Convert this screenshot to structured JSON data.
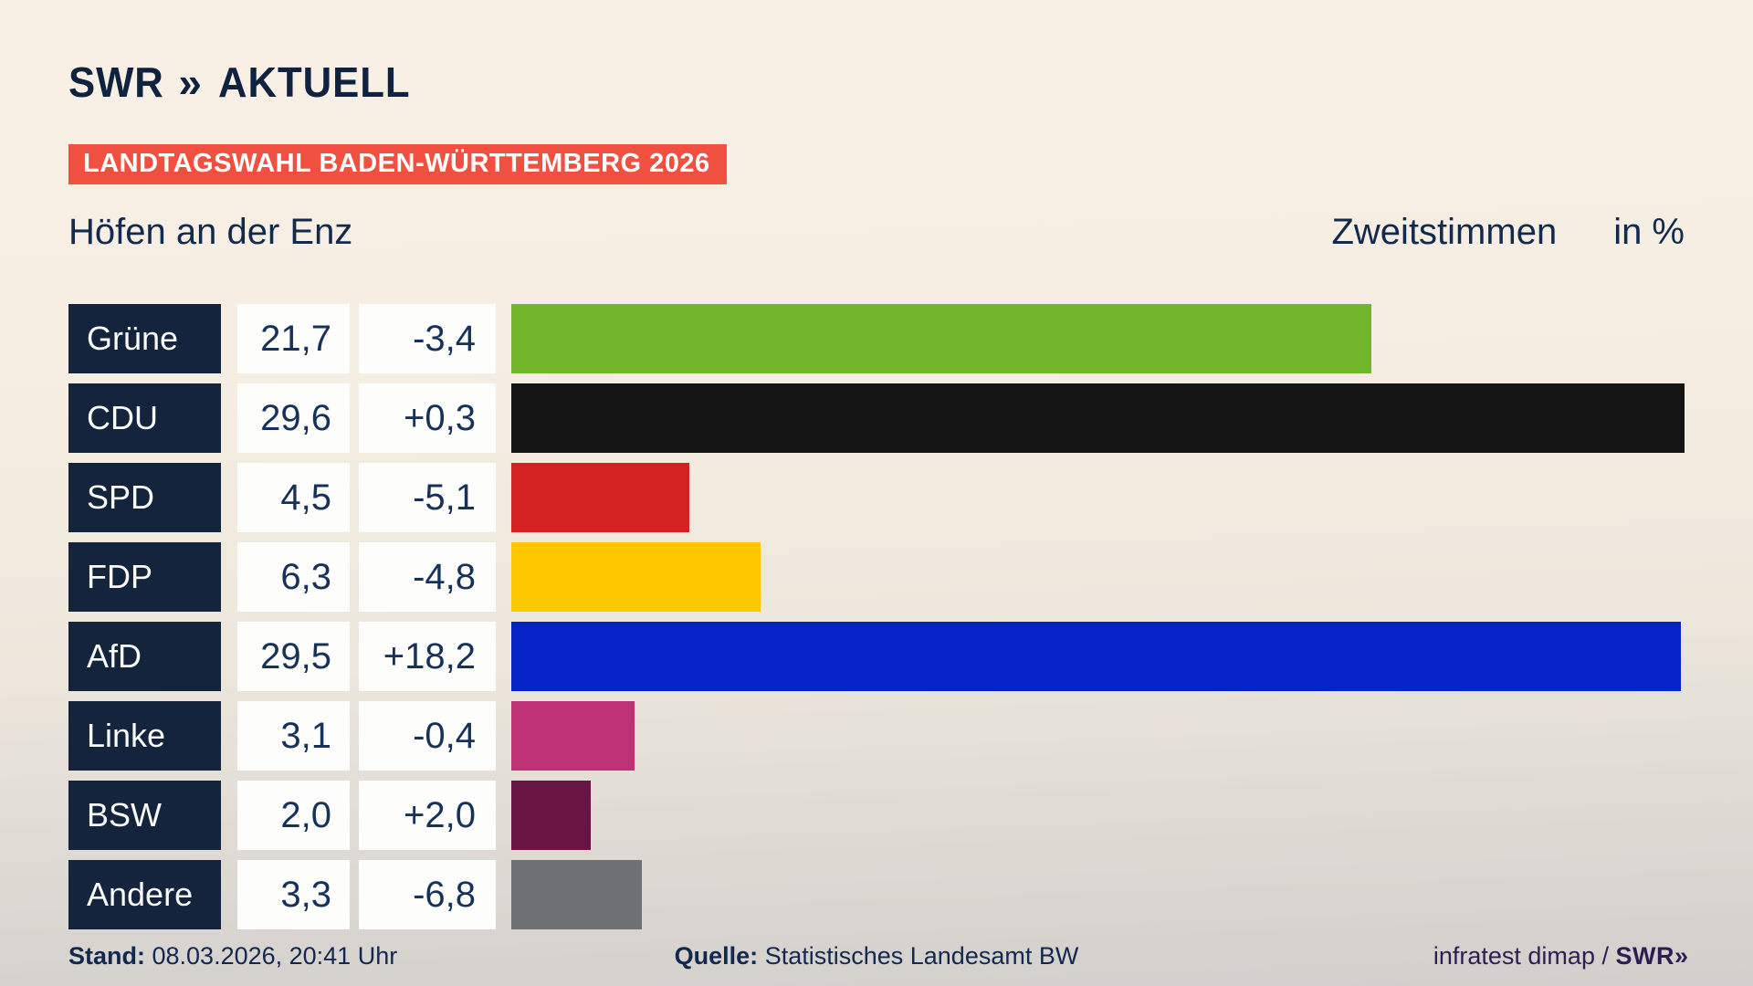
{
  "header": {
    "brand_swr": "SWR",
    "brand_chevrons": "»",
    "brand_aktuell": "AKTUELL",
    "banner": "LANDTAGSWAHL BADEN-WÜRTTEMBERG 2026",
    "region": "Höfen an der Enz",
    "subtitle": "Zweitstimmen",
    "unit": "in %"
  },
  "colors": {
    "banner_red": "#f0503f",
    "navy_box": "#14243d",
    "text_navy": "#16325a",
    "background_top": "#f8f0e5",
    "background_bottom": "#d2cfcc"
  },
  "chart_data": {
    "type": "bar",
    "orientation": "horizontal",
    "title": "Zweitstimmen in %",
    "region": "Höfen an der Enz",
    "unit": "%",
    "xlim": [
      0,
      29.6
    ],
    "max_value": 29.6,
    "grid": false,
    "legend": false,
    "parties": [
      {
        "name": "Grüne",
        "value": "21,7",
        "change": "-3,4",
        "value_num": 21.7,
        "change_num": -3.4,
        "color": "#74b62a"
      },
      {
        "name": "CDU",
        "value": "29,6",
        "change": "+0,3",
        "value_num": 29.6,
        "change_num": 0.3,
        "color": "#141414"
      },
      {
        "name": "SPD",
        "value": "4,5",
        "change": "-5,1",
        "value_num": 4.5,
        "change_num": -5.1,
        "color": "#d32222"
      },
      {
        "name": "FDP",
        "value": "6,3",
        "change": "-4,8",
        "value_num": 6.3,
        "change_num": -4.8,
        "color": "#fdc800"
      },
      {
        "name": "AfD",
        "value": "29,5",
        "change": "+18,2",
        "value_num": 29.5,
        "change_num": 18.2,
        "color": "#0623c8"
      },
      {
        "name": "Linke",
        "value": "3,1",
        "change": "-0,4",
        "value_num": 3.1,
        "change_num": -0.4,
        "color": "#be3175"
      },
      {
        "name": "BSW",
        "value": "2,0",
        "change": "+2,0",
        "value_num": 2.0,
        "change_num": 2.0,
        "color": "#6a1443"
      },
      {
        "name": "Andere",
        "value": "3,3",
        "change": "-6,8",
        "value_num": 3.3,
        "change_num": -6.8,
        "color": "#6f7071"
      }
    ]
  },
  "footer": {
    "stand_label": "Stand:",
    "stand_value": " 08.03.2026, 20:41 Uhr",
    "quelle_label": "Quelle:",
    "quelle_value": " Statistisches Landesamt BW",
    "credit_text": "infratest dimap / ",
    "credit_brand": "SWR",
    "credit_chevrons": "»"
  }
}
